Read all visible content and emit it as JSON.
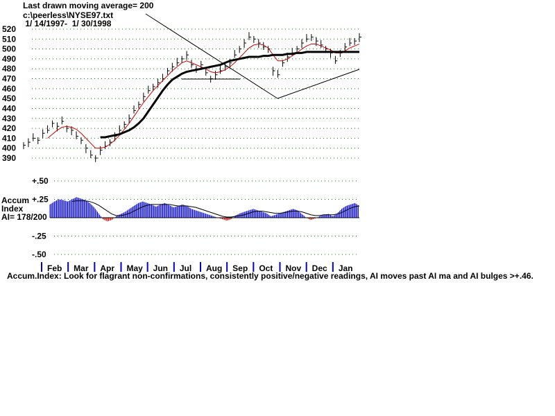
{
  "header": {
    "line1": "Last drawn moving average= 200",
    "line2": "c:\\peerless\\NYSE97.txt",
    "line3": " 1/ 14/1997-  1/ 30/1998"
  },
  "accum_panel": {
    "label_line1": "Accum",
    "label_line2": "Index",
    "label_line3": "AI= 178/200"
  },
  "footnote": "Accum.Index: Look for flagrant non-confirmations, consistently positive/negative readings, AI moves past AI ma and AI bulges >+.46.",
  "colors": {
    "price_bars": "#000000",
    "ma_short": "#cc0000",
    "ma_long": "#000000",
    "grid_dots": "#008000",
    "ai_positive": "#0000cc",
    "ai_negative": "#cc0000"
  },
  "chart_data": [
    {
      "type": "line",
      "title": "",
      "xlabel": "",
      "ylabel": "",
      "ylim": [
        390,
        520
      ],
      "y_ticks": [
        390,
        400,
        410,
        420,
        430,
        440,
        450,
        460,
        470,
        480,
        490,
        500,
        510,
        520
      ],
      "months": [
        "Feb",
        "Mar",
        "Apr",
        "May",
        "Jun",
        "Jul",
        "Aug",
        "Sep",
        "Oct",
        "Nov",
        "Dec",
        "Jan"
      ],
      "grid": true,
      "series": [
        {
          "style": "bars",
          "values": [
            403,
            406,
            410,
            408,
            415,
            418,
            425,
            422,
            427,
            420,
            418,
            412,
            408,
            400,
            393,
            390,
            398,
            402,
            406,
            412,
            418,
            424,
            430,
            438,
            444,
            452,
            458,
            462,
            466,
            470,
            478,
            482,
            486,
            490,
            494,
            484,
            480,
            484,
            476,
            470,
            474,
            478,
            482,
            486,
            494,
            500,
            506,
            512,
            510,
            506,
            502,
            500,
            478,
            474,
            486,
            492,
            496,
            500,
            506,
            510,
            512,
            508,
            504,
            500,
            496,
            488,
            496,
            502,
            506,
            508,
            512
          ]
        },
        {
          "style": "ma_short",
          "values": [
            null,
            null,
            null,
            null,
            null,
            410,
            414,
            418,
            421,
            422,
            421,
            419,
            415,
            410,
            405,
            400,
            400,
            401,
            404,
            408,
            413,
            419,
            425,
            432,
            439,
            446,
            452,
            458,
            463,
            468,
            473,
            478,
            482,
            486,
            488,
            486,
            484,
            482,
            480,
            477,
            476,
            477,
            479,
            482,
            486,
            491,
            496,
            501,
            504,
            505,
            504,
            501,
            494,
            488,
            488,
            490,
            493,
            496,
            500,
            503,
            505,
            505,
            503,
            501,
            499,
            496,
            496,
            498,
            501,
            503,
            505
          ]
        },
        {
          "style": "ma_long",
          "values": [
            null,
            null,
            null,
            null,
            null,
            null,
            null,
            null,
            null,
            null,
            null,
            null,
            null,
            null,
            null,
            null,
            411,
            411,
            412,
            413,
            414,
            416,
            418,
            421,
            425,
            430,
            437,
            444,
            451,
            458,
            464,
            469,
            472,
            475,
            477,
            478,
            479,
            480,
            481,
            482,
            483,
            484,
            486,
            488,
            489,
            490,
            491,
            492,
            492,
            492,
            493,
            493,
            494,
            494,
            494,
            495,
            495,
            496,
            496,
            497,
            497,
            497,
            497,
            497,
            497,
            497,
            497,
            497,
            497,
            497,
            497
          ]
        }
      ]
    },
    {
      "type": "bar",
      "title": "",
      "ylim": [
        -0.5,
        0.5
      ],
      "y_ticks": [
        "+.50",
        "+.25",
        "-.25",
        "-.50"
      ],
      "grid": true,
      "series": [
        {
          "name": "AI",
          "values": [
            0.18,
            0.22,
            0.25,
            0.24,
            0.22,
            0.25,
            0.28,
            0.26,
            0.24,
            0.2,
            0.14,
            0.06,
            -0.02,
            -0.05,
            -0.03,
            0.02,
            0.05,
            0.08,
            0.12,
            0.16,
            0.2,
            0.22,
            0.2,
            0.18,
            0.15,
            0.18,
            0.2,
            0.17,
            0.14,
            0.16,
            0.18,
            0.16,
            0.12,
            0.1,
            0.08,
            0.06,
            0.04,
            0.02,
            0.0,
            -0.02,
            -0.04,
            -0.02,
            0.03,
            0.06,
            0.08,
            0.1,
            0.12,
            0.1,
            0.08,
            0.06,
            0.02,
            0.04,
            0.06,
            0.08,
            0.1,
            0.12,
            0.1,
            0.05,
            0.0,
            -0.03,
            -0.01,
            0.02,
            0.04,
            0.05,
            0.02,
            0.06,
            0.12,
            0.16,
            0.18,
            0.2,
            0.16
          ]
        },
        {
          "name": "AI ma",
          "values": [
            null,
            null,
            null,
            null,
            null,
            0.22,
            0.23,
            0.23,
            0.23,
            0.22,
            0.2,
            0.17,
            0.13,
            0.09,
            0.05,
            0.03,
            0.03,
            0.04,
            0.06,
            0.09,
            0.12,
            0.15,
            0.17,
            0.18,
            0.18,
            0.18,
            0.18,
            0.18,
            0.17,
            0.16,
            0.16,
            0.16,
            0.15,
            0.14,
            0.12,
            0.1,
            0.08,
            0.06,
            0.04,
            0.02,
            0.01,
            0.01,
            0.02,
            0.03,
            0.04,
            0.06,
            0.08,
            0.09,
            0.09,
            0.08,
            0.07,
            0.06,
            0.06,
            0.07,
            0.08,
            0.09,
            0.09,
            0.08,
            0.06,
            0.04,
            0.03,
            0.03,
            0.04,
            0.04,
            0.04,
            0.05,
            0.07,
            0.1,
            0.13,
            0.15,
            0.16
          ]
        }
      ]
    }
  ]
}
